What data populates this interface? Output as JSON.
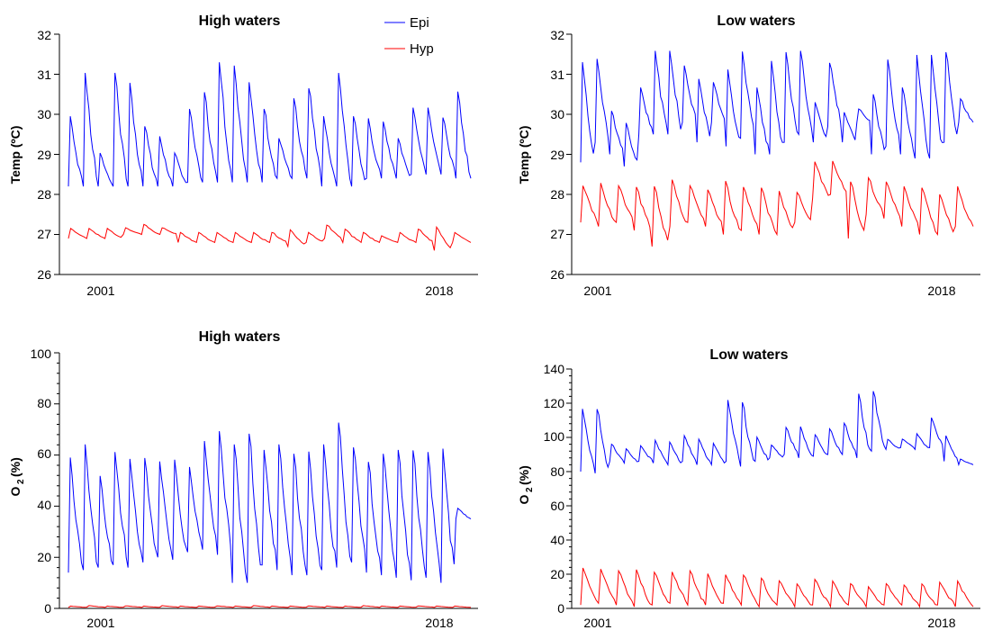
{
  "chart_data": [
    {
      "type": "line",
      "title": "High waters",
      "ylabel": "Temp (ºC)",
      "ylim": [
        26,
        32
      ],
      "yticks": [
        "26",
        "27",
        "28",
        "29",
        "30",
        "31",
        "32"
      ],
      "xlim": [
        1998.8,
        2020
      ],
      "xticks": [
        "2001",
        "2018"
      ],
      "legend": {
        "placement": "top-right",
        "entries": [
          "Epi",
          "Hyp"
        ]
      },
      "series": [
        {
          "name": "Epi",
          "color": "#0000ff",
          "peaks": [
            30.3,
            31.6,
            29.2,
            31.6,
            31.3,
            30.0,
            29.7,
            29.2,
            30.5,
            31.0,
            31.9,
            31.8,
            31.3,
            30.5,
            29.6,
            30.8,
            31.1,
            30.3,
            31.6,
            30.3,
            30.2,
            30.1,
            29.6,
            30.5,
            30.5,
            30.2,
            31.0
          ],
          "troughs": [
            28.2,
            28.2,
            28.2,
            28.2,
            28.2,
            28.2,
            28.2,
            28.2,
            28.3,
            28.3,
            28.3,
            28.3,
            28.3,
            28.3,
            28.4,
            28.4,
            28.4,
            28.2,
            28.2,
            28.2,
            28.4,
            28.4,
            28.4,
            28.5,
            28.5,
            28.5,
            28.4
          ]
        },
        {
          "name": "Hyp",
          "color": "#ff0000",
          "peaks": [
            27.2,
            27.2,
            27.2,
            27.2,
            27.3,
            27.2,
            27.1,
            27.1,
            27.1,
            27.1,
            27.1,
            27.1,
            27.2,
            27.1,
            27.3,
            27.2,
            27.1,
            27.0,
            27.1,
            27.2,
            27.3,
            27.1
          ],
          "troughs": [
            26.9,
            26.9,
            26.9,
            27.0,
            27.0,
            27.0,
            26.8,
            26.8,
            26.8,
            26.8,
            26.8,
            26.8,
            26.7,
            26.8,
            26.9,
            26.8,
            26.8,
            26.8,
            26.8,
            26.8,
            26.6,
            26.8
          ]
        }
      ]
    },
    {
      "type": "line",
      "title": "Low waters",
      "ylabel": "Temp (ºC)",
      "ylim": [
        26,
        32
      ],
      "yticks": [
        "26",
        "27",
        "28",
        "29",
        "30",
        "31",
        "32"
      ],
      "xlim": [
        1998.8,
        2020
      ],
      "xticks": [
        "2001",
        "2018"
      ],
      "series": [
        {
          "name": "Epi",
          "color": "#0000ff",
          "peaks": [
            31.8,
            31.8,
            30.3,
            30.0,
            30.9,
            32.0,
            32.0,
            31.5,
            31.2,
            31.0,
            31.5,
            32.0,
            31.0,
            31.8,
            32.0,
            32.0,
            30.5,
            31.6,
            30.2,
            30.2,
            30.8,
            31.8,
            31.0,
            32.0,
            32.0,
            32.0,
            30.5
          ],
          "troughs": [
            28.8,
            29.3,
            29.0,
            28.7,
            29.5,
            29.5,
            29.5,
            29.8,
            29.3,
            29.8,
            29.2,
            29.4,
            29.0,
            29.0,
            29.3,
            29.5,
            29.3,
            29.7,
            29.3,
            29.8,
            29.0,
            29.2,
            29.0,
            28.9,
            28.9,
            29.3,
            29.8
          ]
        },
        {
          "name": "Hyp",
          "color": "#ff0000",
          "peaks": [
            28.4,
            28.5,
            28.4,
            28.4,
            28.5,
            28.6,
            28.4,
            28.3,
            28.6,
            28.4,
            28.4,
            28.3,
            28.2,
            29.0,
            29.0,
            28.6,
            28.6,
            28.5,
            28.4,
            28.4,
            28.2,
            28.4
          ],
          "troughs": [
            27.3,
            27.2,
            27.3,
            27.1,
            26.7,
            27.2,
            27.3,
            27.2,
            27.0,
            27.1,
            27.0,
            27.0,
            27.3,
            27.9,
            28.0,
            26.9,
            27.5,
            27.4,
            27.2,
            27.0,
            27.0,
            27.2
          ]
        }
      ]
    },
    {
      "type": "line",
      "title": "High waters",
      "ylabel": "O2 (%)",
      "ylim": [
        0,
        100
      ],
      "yticks": [
        "0",
        "20",
        "40",
        "60",
        "80",
        "100"
      ],
      "xlim": [
        1998.8,
        2020
      ],
      "xticks": [
        "2001",
        "2018"
      ],
      "series": [
        {
          "name": "Epi",
          "color": "#0000ff",
          "peaks": [
            68,
            74,
            59,
            70,
            67,
            67,
            65,
            66,
            62,
            74,
            79,
            75,
            80,
            71,
            74,
            70,
            71,
            74,
            84,
            72,
            66,
            70,
            72,
            72,
            71,
            73,
            40
          ],
          "troughs": [
            14,
            15,
            16,
            17,
            16,
            18,
            20,
            19,
            22,
            23,
            21,
            10,
            10,
            17,
            15,
            13,
            13,
            15,
            16,
            18,
            14,
            13,
            12,
            11,
            12,
            10,
            35
          ]
        },
        {
          "name": "Hyp",
          "color": "#ff0000",
          "peaks": [
            1.0,
            1.2,
            1.0,
            1.1,
            1.0,
            1.2,
            1.0,
            1.0,
            1.1,
            1.0,
            1.2,
            1.0,
            1.0,
            1.1,
            1.0,
            1.0,
            1.2,
            1.0,
            1.0,
            1.1,
            1.0,
            1.0
          ],
          "troughs": [
            0.4,
            0.5,
            0.4,
            0.5,
            0.4,
            0.5,
            0.4,
            0.4,
            0.5,
            0.4,
            0.5,
            0.4,
            0.4,
            0.5,
            0.4,
            0.4,
            0.5,
            0.4,
            0.4,
            0.5,
            0.4,
            0.4
          ]
        }
      ]
    },
    {
      "type": "line",
      "title": "Low waters",
      "ylabel": "O2 (%)",
      "ylim": [
        0,
        140
      ],
      "yticks": [
        "0",
        "20",
        "40",
        "60",
        "80",
        "100",
        "120",
        "140"
      ],
      "xlim": [
        1998.8,
        2020
      ],
      "xticks": [
        "2001",
        "2018"
      ],
      "series": [
        {
          "name": "Epi",
          "color": "#0000ff",
          "peaks": [
            124,
            124,
            98,
            95,
            97,
            101,
            100,
            104,
            102,
            99,
            129,
            128,
            103,
            97,
            109,
            110,
            104,
            108,
            112,
            133,
            134,
            100,
            100,
            104,
            115,
            104,
            88
          ],
          "troughs": [
            80,
            79,
            86,
            85,
            86,
            85,
            84,
            86,
            84,
            84,
            86,
            83,
            86,
            88,
            90,
            88,
            89,
            90,
            90,
            88,
            92,
            93,
            94,
            93,
            94,
            86,
            84
          ]
        },
        {
          "name": "Hyp",
          "color": "#ff0000",
          "peaks": [
            28,
            27,
            26,
            27,
            25,
            25,
            26,
            24,
            23,
            23,
            21,
            19,
            17,
            20,
            19,
            17,
            15,
            17,
            16,
            17,
            18,
            19
          ],
          "troughs": [
            2,
            3,
            2,
            1,
            2,
            3,
            2,
            2,
            3,
            2,
            1,
            2,
            1,
            2,
            1,
            2,
            1,
            2,
            2,
            1,
            2,
            1
          ]
        }
      ]
    }
  ]
}
